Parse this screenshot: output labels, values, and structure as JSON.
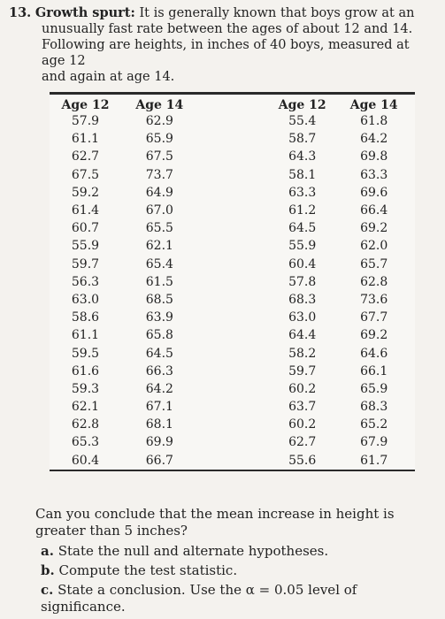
{
  "problem": {
    "number": "13.",
    "title": "Growth spurt:",
    "line1": "It is generally known that boys grow at an",
    "line2": "unusually fast rate between the ages of about 12 and 14.",
    "line3": "Following are heights, in inches of 40 boys, measured at age 12",
    "line4": "and again at age 14."
  },
  "table": {
    "headers": [
      "Age 12",
      "Age 14",
      "Age 12",
      "Age 14"
    ],
    "rows": [
      [
        "57.9",
        "62.9",
        "55.4",
        "61.8"
      ],
      [
        "61.1",
        "65.9",
        "58.7",
        "64.2"
      ],
      [
        "62.7",
        "67.5",
        "64.3",
        "69.8"
      ],
      [
        "67.5",
        "73.7",
        "58.1",
        "63.3"
      ],
      [
        "59.2",
        "64.9",
        "63.3",
        "69.6"
      ],
      [
        "61.4",
        "67.0",
        "61.2",
        "66.4"
      ],
      [
        "60.7",
        "65.5",
        "64.5",
        "69.2"
      ],
      [
        "55.9",
        "62.1",
        "55.9",
        "62.0"
      ],
      [
        "59.7",
        "65.4",
        "60.4",
        "65.7"
      ],
      [
        "56.3",
        "61.5",
        "57.8",
        "62.8"
      ],
      [
        "63.0",
        "68.5",
        "68.3",
        "73.6"
      ],
      [
        "58.6",
        "63.9",
        "63.0",
        "67.7"
      ],
      [
        "61.1",
        "65.8",
        "64.4",
        "69.2"
      ],
      [
        "59.5",
        "64.5",
        "58.2",
        "64.6"
      ],
      [
        "61.6",
        "66.3",
        "59.7",
        "66.1"
      ],
      [
        "59.3",
        "64.2",
        "60.2",
        "65.9"
      ],
      [
        "62.1",
        "67.1",
        "63.7",
        "68.3"
      ],
      [
        "62.8",
        "68.1",
        "60.2",
        "65.2"
      ],
      [
        "65.3",
        "69.9",
        "62.7",
        "67.9"
      ],
      [
        "60.4",
        "66.7",
        "55.6",
        "61.7"
      ]
    ]
  },
  "questions": {
    "intro": "Can you conclude that the mean increase in height is greater than 5 inches?",
    "items": [
      {
        "letter": "a.",
        "text": "State the null and alternate hypotheses."
      },
      {
        "letter": "b.",
        "text": "Compute the test statistic."
      },
      {
        "letter": "c.",
        "text": "State a conclusion. Use the α = 0.05 level of significance."
      }
    ]
  }
}
